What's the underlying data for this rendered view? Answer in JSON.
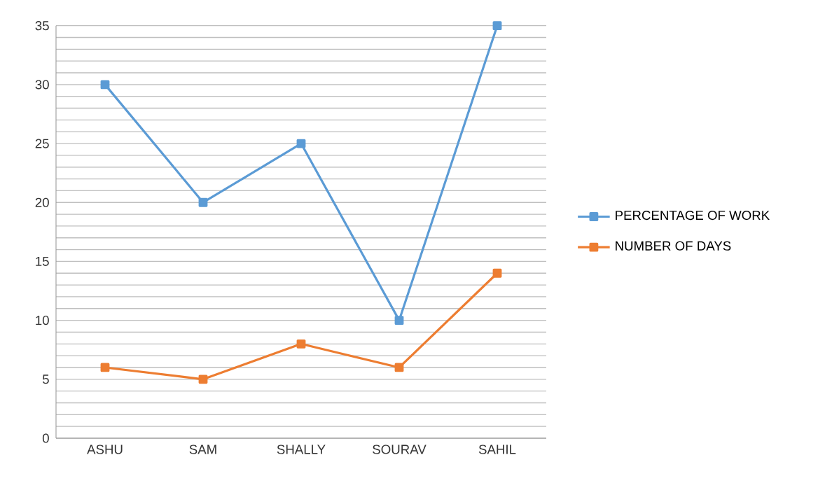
{
  "chart_data": {
    "type": "line",
    "categories": [
      "ASHU",
      "SAM",
      "SHALLY",
      "SOURAV",
      "SAHIL"
    ],
    "series": [
      {
        "name": "PERCENTAGE OF WORK",
        "color": "#5b9bd5",
        "values": [
          30,
          20,
          25,
          10,
          35
        ]
      },
      {
        "name": "NUMBER OF DAYS",
        "color": "#ed7d31",
        "values": [
          6,
          5,
          8,
          6,
          14
        ]
      }
    ],
    "ylim": [
      0,
      35
    ],
    "yticks": [
      0,
      {
        "value": 1,
        "label": null
      },
      {
        "value": 2,
        "label": null
      },
      {
        "value": 3,
        "label": null
      },
      {
        "value": 4,
        "label": null
      },
      5,
      {
        "value": 6,
        "label": null
      },
      {
        "value": 7,
        "label": null
      },
      {
        "value": 8,
        "label": null
      },
      {
        "value": 9,
        "label": null
      },
      10,
      {
        "value": 11,
        "label": null
      },
      {
        "value": 12,
        "label": null
      },
      {
        "value": 13,
        "label": null
      },
      {
        "value": 14,
        "label": null
      },
      15,
      {
        "value": 16,
        "label": null
      },
      {
        "value": 17,
        "label": null
      },
      {
        "value": 18,
        "label": null
      },
      {
        "value": 19,
        "label": null
      },
      20,
      {
        "value": 21,
        "label": null
      },
      {
        "value": 22,
        "label": null
      },
      {
        "value": 23,
        "label": null
      },
      {
        "value": 24,
        "label": null
      },
      25,
      {
        "value": 26,
        "label": null
      },
      {
        "value": 27,
        "label": null
      },
      {
        "value": 28,
        "label": null
      },
      {
        "value": 29,
        "label": null
      },
      30,
      {
        "value": 31,
        "label": null
      },
      {
        "value": 32,
        "label": null
      },
      {
        "value": 33,
        "label": null
      },
      {
        "value": 34,
        "label": null
      },
      35
    ],
    "grid": "y",
    "legend": "right",
    "marker": "square",
    "line_style": "solid"
  }
}
